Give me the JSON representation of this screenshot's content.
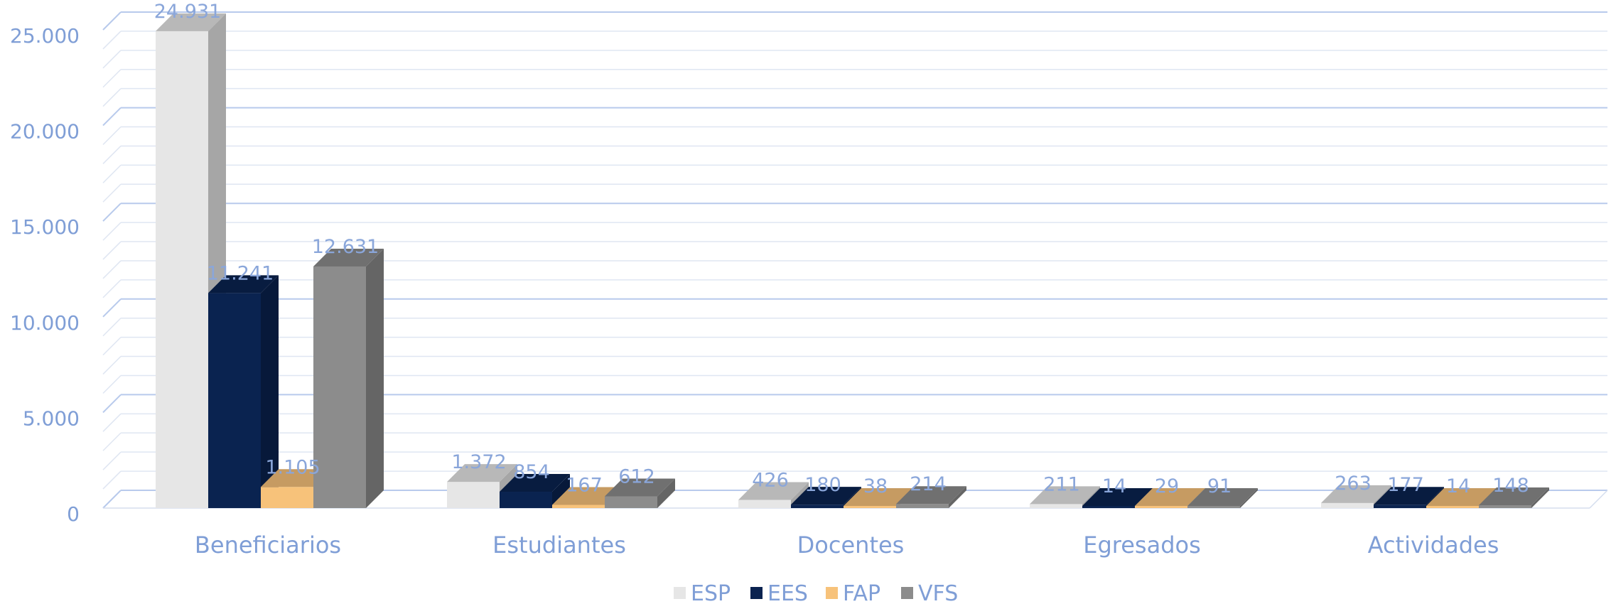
{
  "chart_data": {
    "type": "bar",
    "style": "3d-clustered-column",
    "categories": [
      "Beneficiarios",
      "Estudiantes",
      "Docentes",
      "Egresados",
      "Actividades"
    ],
    "series": [
      {
        "name": "ESP",
        "color": "#e6e6e6",
        "values": [
          24931,
          1372,
          426,
          211,
          263
        ],
        "labels": [
          "24.931",
          "1.372",
          "426",
          "211",
          "263"
        ]
      },
      {
        "name": "EES",
        "color": "#0a2350",
        "values": [
          11241,
          854,
          180,
          14,
          177
        ],
        "labels": [
          "11.241",
          "854",
          "180",
          "14",
          "177"
        ]
      },
      {
        "name": "FAP",
        "color": "#f7c27a",
        "values": [
          1105,
          167,
          38,
          29,
          14
        ],
        "labels": [
          "1.105",
          "167",
          "38",
          "29",
          "14"
        ]
      },
      {
        "name": "VFS",
        "color": "#8c8c8c",
        "values": [
          12631,
          612,
          214,
          91,
          148
        ],
        "labels": [
          "12.631",
          "612",
          "214",
          "91",
          "148"
        ]
      }
    ],
    "ylim": [
      0,
      25000
    ],
    "yticks": [
      0,
      5000,
      10000,
      15000,
      20000,
      25000
    ],
    "ytick_labels": [
      "0",
      "5.000",
      "10.000",
      "15.000",
      "20.000",
      "25.000"
    ],
    "grid": true,
    "legend": "bottom",
    "title": "",
    "xlabel": "",
    "ylabel": ""
  }
}
